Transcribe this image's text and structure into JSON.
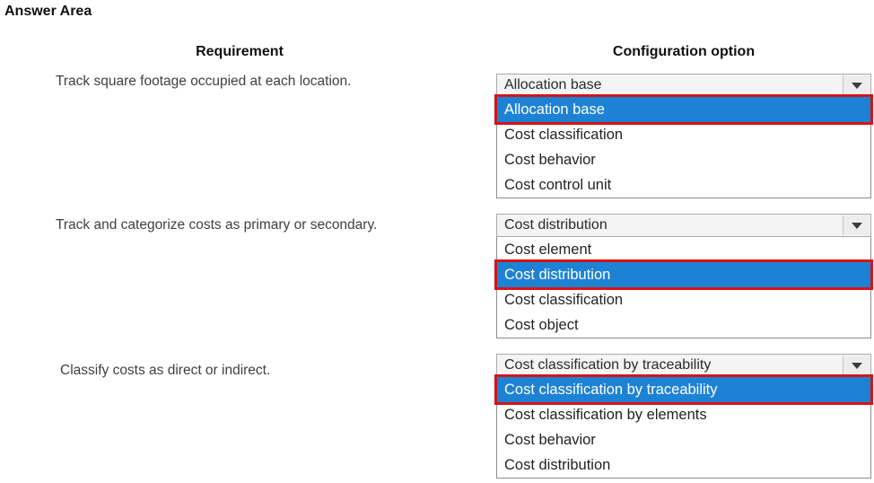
{
  "title": "Answer Area",
  "headers": {
    "requirement": "Requirement",
    "configuration": "Configuration option"
  },
  "colors": {
    "highlight_blue": "#1e82d4",
    "answer_outline_red": "#d61313",
    "select_background": "#f4f4f4",
    "list_border": "#8c8c8c"
  },
  "icons": {
    "dropdown_arrow": "triangle-down"
  },
  "questions": [
    {
      "requirement": "Track square footage occupied at each location.",
      "selected_value": "Allocation base",
      "options": [
        {
          "label": "Allocation base",
          "selected": true
        },
        {
          "label": "Cost classification",
          "selected": false
        },
        {
          "label": "Cost behavior",
          "selected": false
        },
        {
          "label": "Cost control unit",
          "selected": false
        }
      ]
    },
    {
      "requirement": "Track and categorize costs as primary or secondary.",
      "selected_value": "Cost distribution",
      "options": [
        {
          "label": "Cost element",
          "selected": false
        },
        {
          "label": "Cost distribution",
          "selected": true
        },
        {
          "label": "Cost classification",
          "selected": false
        },
        {
          "label": "Cost object",
          "selected": false
        }
      ]
    },
    {
      "requirement": "Classify costs as direct or indirect.",
      "selected_value": "Cost classification by traceability",
      "options": [
        {
          "label": "Cost classification by traceability",
          "selected": true
        },
        {
          "label": "Cost classification by elements",
          "selected": false
        },
        {
          "label": "Cost behavior",
          "selected": false
        },
        {
          "label": "Cost distribution",
          "selected": false
        }
      ]
    }
  ]
}
